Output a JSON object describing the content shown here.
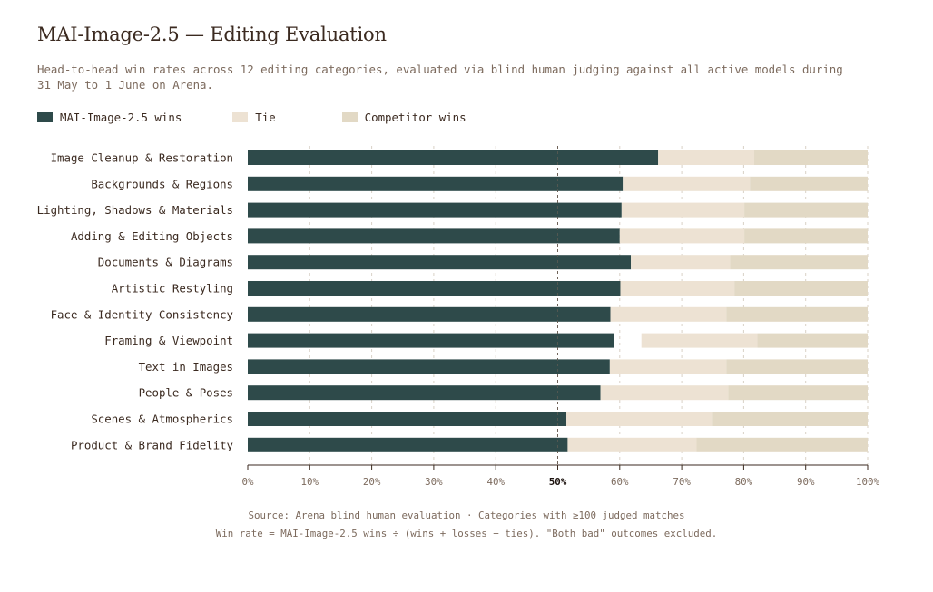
{
  "title": "MAI-Image-2.5 — Editing Evaluation",
  "subtitle": "Head-to-head win rates across 12 editing categories, evaluated via blind human judging against all active models during 31 May to 1 June on Arena.",
  "legend": [
    {
      "label": "MAI-Image-2.5 wins",
      "color": "#2e4a4a"
    },
    {
      "label": "Tie",
      "color": "#ede2d3"
    },
    {
      "label": "Competitor wins",
      "color": "#e2d9c5"
    }
  ],
  "footer": {
    "line1": "Source: Arena blind human evaluation · Categories with ≥100 judged matches",
    "line2": "Win rate = MAI-Image-2.5 wins ÷ (wins + losses + ties). \"Both bad\" outcomes excluded."
  },
  "chart_data": {
    "type": "bar",
    "orientation": "horizontal",
    "stacked": true,
    "categories": [
      "Image Cleanup & Restoration",
      "Backgrounds & Regions",
      "Lighting, Shadows & Materials",
      "Adding & Editing Objects",
      "Documents & Diagrams",
      "Artistic Restyling",
      "Face & Identity Consistency",
      "Framing & Viewpoint",
      "Text in Images",
      "People & Poses",
      "Scenes & Atmospherics",
      "Product & Brand Fidelity"
    ],
    "series": [
      {
        "name": "MAI-Image-2.5 wins",
        "color": "#2e4a4a",
        "values": [
          66.2,
          60.5,
          60.3,
          60.0,
          61.8,
          60.1,
          58.5,
          59.1,
          58.4,
          56.9,
          51.4,
          51.6
        ]
      },
      {
        "name": "Tie",
        "color": "#ede2d3",
        "values": [
          15.5,
          20.5,
          19.8,
          20.1,
          16.0,
          18.4,
          18.7,
          18.7,
          18.8,
          20.6,
          23.6,
          20.8
        ]
      },
      {
        "name": "Competitor wins",
        "color": "#e2d9c5",
        "values": [
          18.3,
          19.0,
          19.9,
          19.9,
          22.2,
          21.5,
          22.8,
          17.8,
          22.8,
          22.5,
          25.0,
          27.6
        ]
      }
    ],
    "gaps": [
      0,
      0,
      0,
      0,
      0,
      0,
      0,
      4.4,
      0,
      0,
      0,
      0
    ],
    "xlim": [
      0,
      100
    ],
    "xticks": [
      "0%",
      "10%",
      "20%",
      "30%",
      "40%",
      "50%",
      "60%",
      "70%",
      "80%",
      "90%",
      "100%"
    ],
    "reference_line": 50,
    "grid": true,
    "legend_position": "top-left"
  }
}
